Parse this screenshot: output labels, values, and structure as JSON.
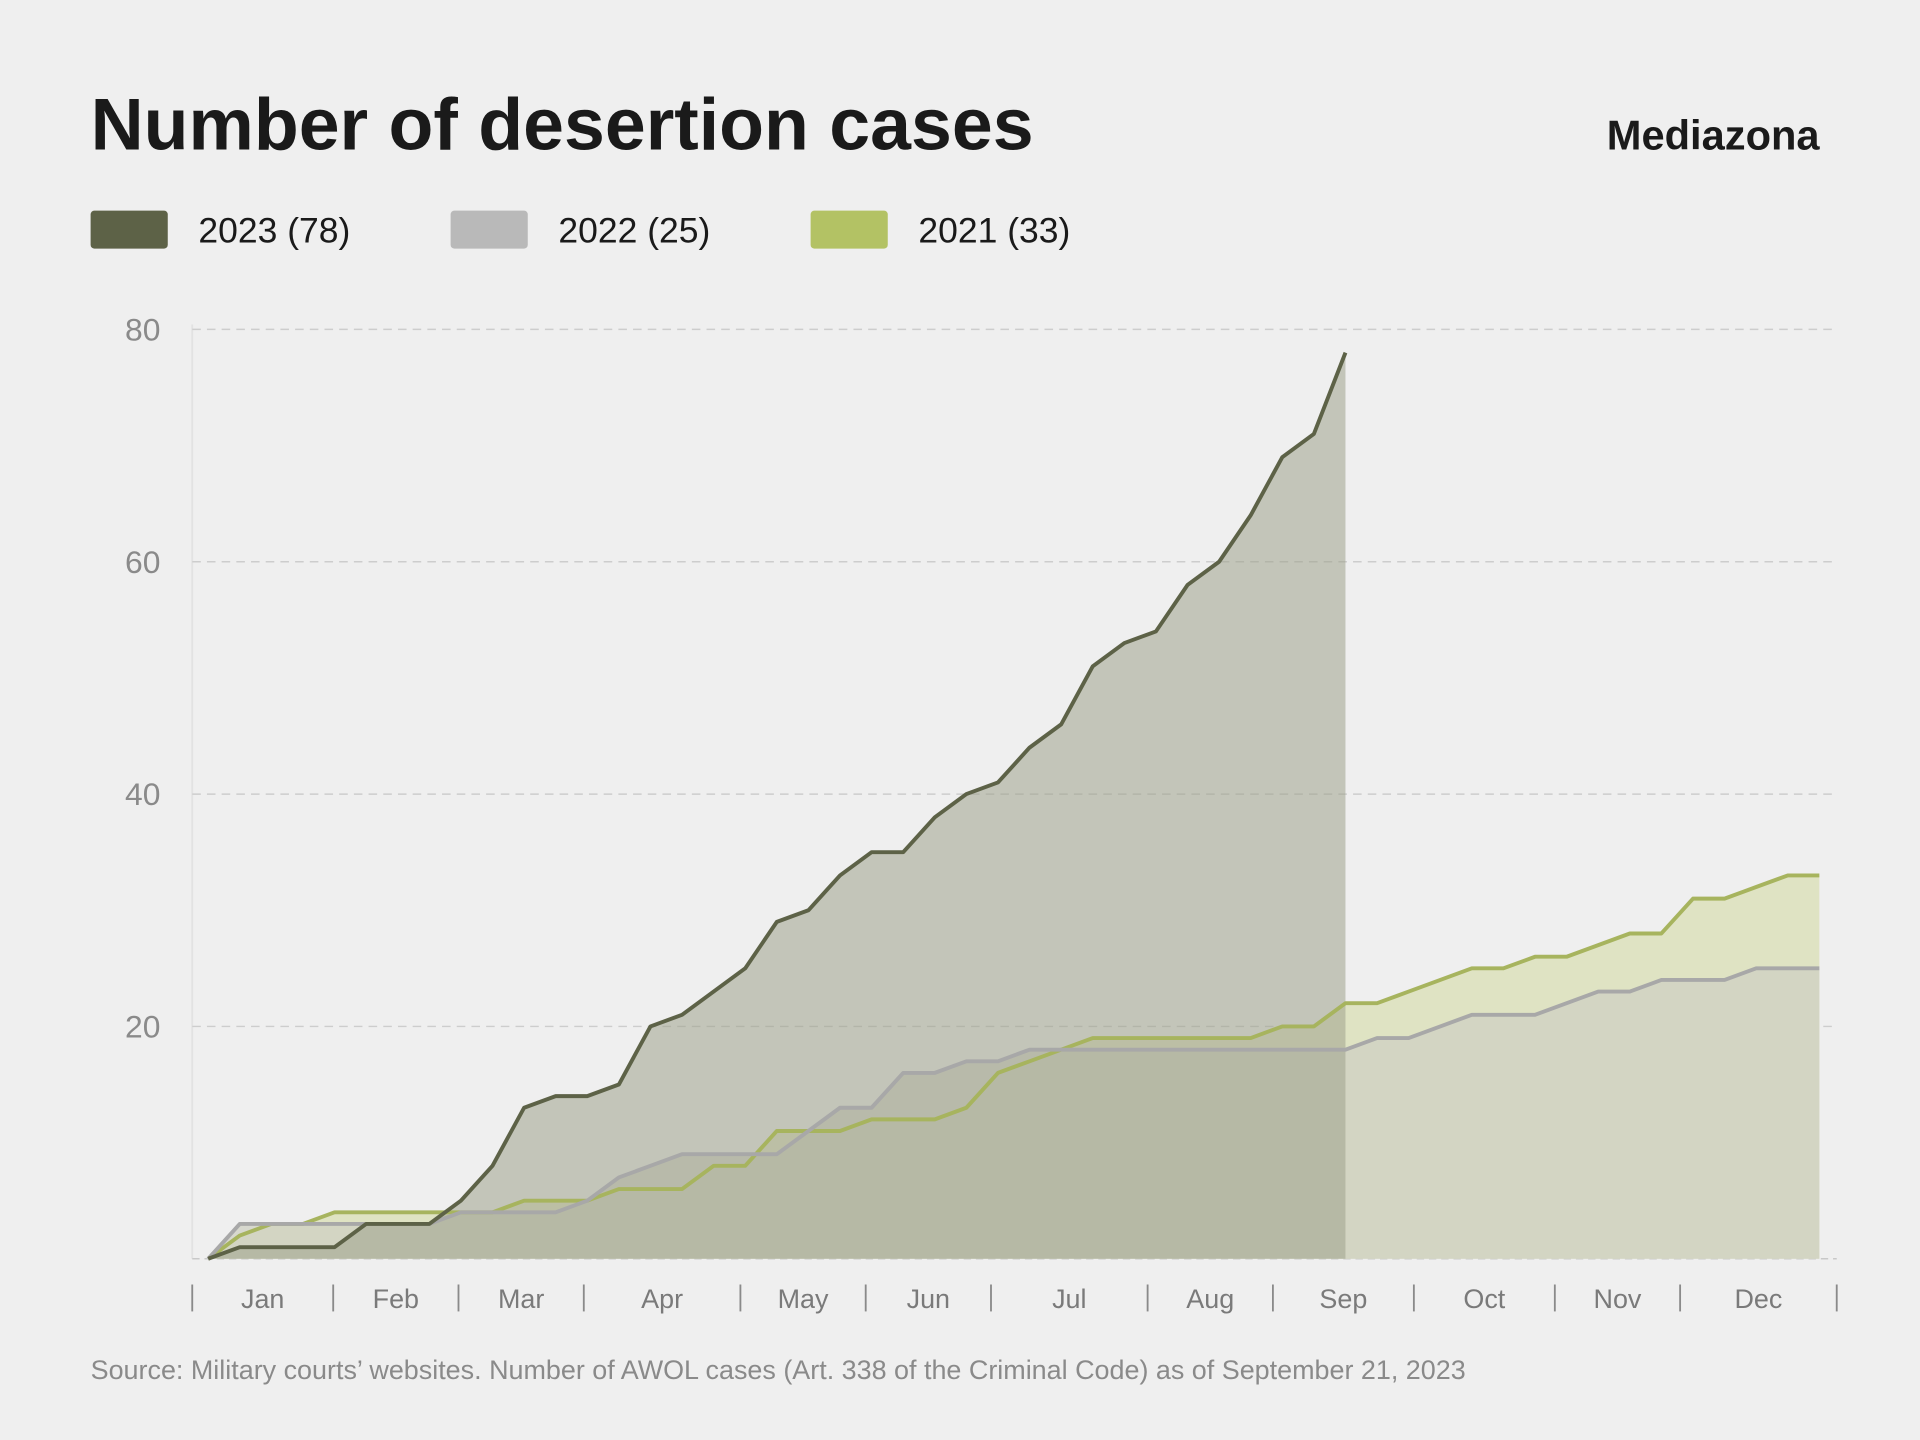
{
  "brand": "Mediazona",
  "chart_data": {
    "type": "area",
    "title": "Number of desertion cases",
    "source": "Source: Military courts’ websites. Number of AWOL cases (Art. 338 of the Criminal Code) as of September 21, 2023",
    "x_unit": "week of year",
    "months": [
      "Jan",
      "Feb",
      "Mar",
      "Apr",
      "May",
      "Jun",
      "Jul",
      "Aug",
      "Sep",
      "Oct",
      "Nov",
      "Dec"
    ],
    "month_week_boundaries": [
      0,
      4.5,
      8.5,
      12.5,
      17.5,
      21.5,
      25.5,
      30.5,
      34.5,
      39,
      43.5,
      47.5,
      52.5
    ],
    "ylim": [
      0,
      80
    ],
    "yticks": [
      "20",
      "40",
      "60",
      "80"
    ],
    "grid": true,
    "legend_position": "top-left",
    "series": [
      {
        "name": "2021 (33)",
        "color": "#b3c264",
        "values": [
          0,
          2,
          3,
          3,
          4,
          4,
          4,
          4,
          4,
          4,
          5,
          5,
          5,
          6,
          6,
          6,
          8,
          8,
          11,
          11,
          11,
          12,
          12,
          12,
          13,
          16,
          17,
          18,
          19,
          19,
          19,
          19,
          19,
          19,
          20,
          20,
          22,
          22,
          23,
          24,
          25,
          25,
          26,
          26,
          27,
          28,
          28,
          31,
          31,
          32,
          33,
          33
        ]
      },
      {
        "name": "2022 (25)",
        "color": "#b9b9b9",
        "values": [
          0,
          3,
          3,
          3,
          3,
          3,
          3,
          3,
          4,
          4,
          4,
          4,
          5,
          7,
          8,
          9,
          9,
          9,
          9,
          11,
          13,
          13,
          16,
          16,
          17,
          17,
          18,
          18,
          18,
          18,
          18,
          18,
          18,
          18,
          18,
          18,
          18,
          19,
          19,
          20,
          21,
          21,
          21,
          22,
          23,
          23,
          24,
          24,
          24,
          25,
          25,
          25
        ]
      },
      {
        "name": "2023 (78)",
        "color": "#5d6247",
        "values": [
          0,
          1,
          1,
          1,
          1,
          3,
          3,
          3,
          5,
          8,
          13,
          14,
          14,
          15,
          20,
          21,
          23,
          25,
          29,
          30,
          33,
          35,
          35,
          38,
          40,
          41,
          44,
          46,
          51,
          53,
          54,
          58,
          60,
          64,
          69,
          71,
          78
        ]
      }
    ]
  }
}
